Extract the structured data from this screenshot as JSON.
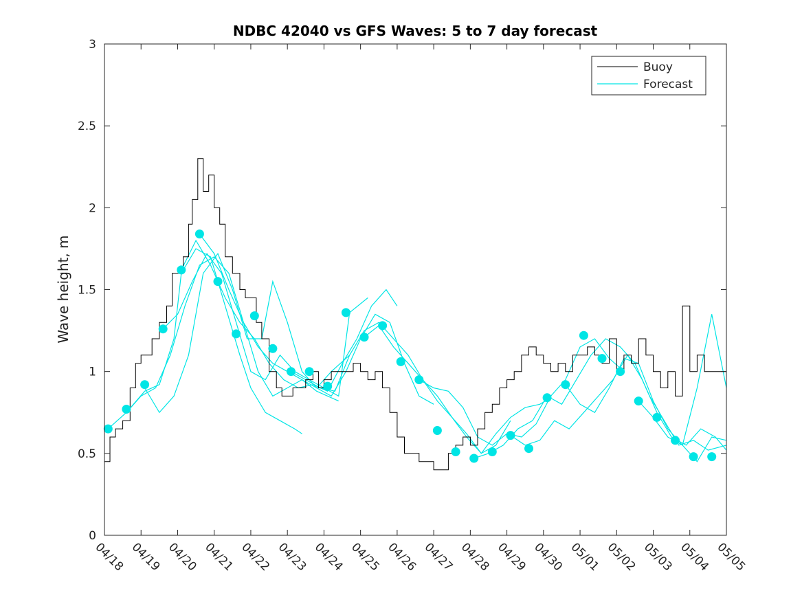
{
  "chart_data": {
    "type": "line",
    "title": "NDBC 42040 vs GFS Waves: 5 to 7 day forecast",
    "xlabel": "",
    "ylabel": "Wave height, m",
    "xlim": [
      0,
      17
    ],
    "ylim": [
      0,
      3
    ],
    "grid": false,
    "legend_position": "top-right",
    "legend": [
      "Buoy",
      "Forecast"
    ],
    "x_tick_labels": [
      "04/18",
      "04/19",
      "04/20",
      "04/21",
      "04/22",
      "04/23",
      "04/24",
      "04/25",
      "04/26",
      "04/27",
      "04/28",
      "04/29",
      "04/30",
      "05/01",
      "05/02",
      "05/03",
      "05/04",
      "05/05"
    ],
    "y_ticks": [
      0,
      0.5,
      1,
      1.5,
      2,
      2.5,
      3
    ],
    "y_tick_labels": [
      "0",
      "0.5",
      "1",
      "1.5",
      "2",
      "2.5",
      "3"
    ],
    "colors": {
      "buoy": "#000000",
      "forecast": "#00e5e5"
    },
    "buoy": {
      "name": "Buoy",
      "x": [
        0,
        0.15,
        0.3,
        0.5,
        0.7,
        0.85,
        1.0,
        1.2,
        1.3,
        1.5,
        1.7,
        1.85,
        2.0,
        2.15,
        2.3,
        2.4,
        2.55,
        2.7,
        2.85,
        3.0,
        3.15,
        3.3,
        3.5,
        3.7,
        3.85,
        4.0,
        4.15,
        4.3,
        4.5,
        4.7,
        4.85,
        5.0,
        5.15,
        5.3,
        5.5,
        5.7,
        5.85,
        6.0,
        6.2,
        6.4,
        6.6,
        6.8,
        7.0,
        7.2,
        7.4,
        7.6,
        7.8,
        8.0,
        8.2,
        8.4,
        8.6,
        8.8,
        9.0,
        9.2,
        9.4,
        9.6,
        9.8,
        10.0,
        10.2,
        10.4,
        10.6,
        10.8,
        11.0,
        11.2,
        11.4,
        11.6,
        11.8,
        12.0,
        12.2,
        12.4,
        12.6,
        12.8,
        13.0,
        13.2,
        13.4,
        13.6,
        13.8,
        14.0,
        14.2,
        14.4,
        14.6,
        14.8,
        15.0,
        15.2,
        15.4,
        15.6,
        15.8,
        16.0,
        16.2,
        16.4,
        16.6,
        16.8,
        17.0
      ],
      "values": [
        0.45,
        0.6,
        0.65,
        0.7,
        0.9,
        1.05,
        1.1,
        1.1,
        1.2,
        1.3,
        1.4,
        1.6,
        1.6,
        1.7,
        1.9,
        2.05,
        2.3,
        2.1,
        2.2,
        2.0,
        1.9,
        1.7,
        1.6,
        1.5,
        1.45,
        1.45,
        1.3,
        1.2,
        1.0,
        0.9,
        0.85,
        0.85,
        0.9,
        0.9,
        0.95,
        1.0,
        0.9,
        0.95,
        1.0,
        1.0,
        1.0,
        1.05,
        1.0,
        0.95,
        1.0,
        0.9,
        0.75,
        0.6,
        0.5,
        0.5,
        0.45,
        0.45,
        0.4,
        0.4,
        0.5,
        0.55,
        0.6,
        0.55,
        0.65,
        0.75,
        0.8,
        0.9,
        0.95,
        1.0,
        1.1,
        1.15,
        1.1,
        1.05,
        1.0,
        1.05,
        1.0,
        1.1,
        1.1,
        1.15,
        1.1,
        1.05,
        1.2,
        1.0,
        1.1,
        1.05,
        1.2,
        1.1,
        1.0,
        0.9,
        1.0,
        0.85,
        1.4,
        1.0,
        1.1,
        1.0,
        1.0,
        1.0,
        1.0
      ],
      "interval": "shown as a single series"
    },
    "forecast_points": {
      "name": "Forecast",
      "x": [
        0.1,
        0.6,
        1.1,
        1.6,
        2.1,
        2.6,
        3.1,
        3.6,
        4.1,
        4.6,
        5.1,
        5.6,
        6.1,
        6.6,
        7.1,
        7.6,
        8.1,
        8.6,
        9.1,
        9.6,
        10.1,
        10.6,
        11.1,
        11.6,
        12.1,
        12.6,
        13.1,
        13.6,
        14.1,
        14.6,
        15.1,
        15.6,
        16.1,
        16.6
      ],
      "values": [
        0.65,
        0.77,
        0.92,
        1.26,
        1.62,
        1.84,
        1.55,
        1.23,
        1.34,
        1.14,
        1.0,
        1.0,
        0.91,
        1.36,
        1.21,
        1.28,
        1.06,
        0.95,
        0.64,
        0.51,
        0.47,
        0.51,
        0.61,
        0.53,
        0.84,
        0.92,
        1.22,
        1.08,
        1.0,
        0.82,
        0.72,
        0.58,
        0.48,
        0.48
      ]
    },
    "forecast_series": [
      {
        "name": "",
        "x": [
          0.1,
          0.6,
          1.1,
          1.5,
          1.9,
          2.1,
          2.5,
          2.9,
          3.3,
          3.7,
          4.0,
          4.4,
          4.8,
          5.2,
          5.4
        ],
        "values": [
          0.65,
          0.75,
          0.88,
          0.92,
          1.2,
          1.6,
          1.75,
          1.7,
          1.4,
          1.1,
          0.9,
          0.75,
          0.7,
          0.65,
          0.62
        ]
      },
      {
        "name": "",
        "x": [
          0.6,
          1.0,
          1.4,
          1.8,
          2.2,
          2.6,
          3.0,
          3.4,
          3.8,
          4.2,
          4.6,
          5.0,
          5.4,
          5.8,
          6.4
        ],
        "values": [
          0.75,
          0.85,
          0.9,
          1.1,
          1.4,
          1.65,
          1.7,
          1.6,
          1.3,
          1.0,
          0.85,
          0.9,
          0.95,
          0.88,
          0.82
        ]
      },
      {
        "name": "",
        "x": [
          1.1,
          1.5,
          1.9,
          2.3,
          2.7,
          3.1,
          3.5,
          3.9,
          4.3,
          4.6,
          5.0,
          5.4,
          5.8,
          6.2,
          6.7
        ],
        "values": [
          0.9,
          0.75,
          0.85,
          1.1,
          1.6,
          1.72,
          1.5,
          1.2,
          1.2,
          1.55,
          1.3,
          1.0,
          0.9,
          1.0,
          1.1
        ]
      },
      {
        "name": "",
        "x": [
          1.6,
          2.0,
          2.4,
          2.8,
          3.2,
          3.6,
          4.0,
          4.4,
          4.8,
          5.2,
          5.6,
          6.0,
          6.4,
          6.7,
          7.2
        ],
        "values": [
          1.26,
          1.35,
          1.55,
          1.72,
          1.6,
          1.3,
          1.0,
          0.95,
          1.1,
          1.0,
          0.95,
          0.9,
          0.85,
          1.36,
          1.45
        ]
      },
      {
        "name": "",
        "x": [
          2.1,
          2.5,
          2.9,
          3.3,
          3.7,
          4.1,
          4.5,
          4.9,
          5.3,
          5.7,
          6.1,
          6.5,
          6.9,
          7.3,
          7.7,
          8.0
        ],
        "values": [
          1.62,
          1.8,
          1.65,
          1.45,
          1.3,
          1.2,
          1.05,
          0.95,
          0.9,
          0.92,
          0.88,
          1.05,
          1.2,
          1.4,
          1.5,
          1.4
        ]
      },
      {
        "name": "",
        "x": [
          2.6,
          3.0,
          3.4,
          3.8,
          4.2,
          4.6,
          5.0,
          5.4,
          5.8,
          6.2,
          6.6,
          7.0,
          7.4,
          7.8,
          8.2,
          8.6,
          9.0
        ],
        "values": [
          1.84,
          1.72,
          1.5,
          1.3,
          1.15,
          1.05,
          1.0,
          0.95,
          0.9,
          0.85,
          1.0,
          1.2,
          1.35,
          1.3,
          1.05,
          0.85,
          0.8
        ]
      },
      {
        "name": "",
        "x": [
          5.1,
          5.5,
          5.9,
          6.3,
          6.7,
          7.1,
          7.5,
          7.9,
          8.3,
          8.7,
          9.1,
          9.5,
          9.9,
          10.3,
          10.7,
          11.1
        ],
        "values": [
          1.0,
          0.95,
          0.9,
          0.88,
          1.1,
          1.25,
          1.3,
          1.2,
          1.1,
          0.95,
          0.82,
          0.72,
          0.6,
          0.5,
          0.55,
          0.7
        ]
      },
      {
        "name": "",
        "x": [
          7.1,
          7.5,
          7.9,
          8.3,
          8.7,
          9.1,
          9.5,
          9.9,
          10.3,
          10.7,
          11.1,
          11.5,
          11.9,
          12.2
        ],
        "values": [
          1.21,
          1.28,
          1.15,
          1.05,
          0.95,
          0.85,
          0.72,
          0.62,
          0.5,
          0.62,
          0.72,
          0.78,
          0.8,
          0.84
        ]
      },
      {
        "name": "",
        "x": [
          8.6,
          9.0,
          9.4,
          9.8,
          10.2,
          10.6,
          11.0,
          11.4,
          11.8,
          12.2,
          12.6,
          13.0,
          13.4,
          13.8,
          14.2
        ],
        "values": [
          0.95,
          0.9,
          0.88,
          0.78,
          0.6,
          0.55,
          0.62,
          0.6,
          0.68,
          0.85,
          0.95,
          1.15,
          1.2,
          1.08,
          1.0
        ]
      },
      {
        "name": "",
        "x": [
          10.1,
          10.5,
          10.9,
          11.3,
          11.7,
          12.1,
          12.5,
          12.9,
          13.3,
          13.7,
          14.1,
          14.5,
          14.9,
          15.3,
          15.7,
          16.1,
          16.5,
          17.0
        ],
        "values": [
          0.47,
          0.5,
          0.55,
          0.65,
          0.7,
          0.85,
          0.8,
          0.95,
          1.1,
          1.2,
          1.15,
          1.05,
          0.85,
          0.7,
          0.55,
          0.58,
          0.52,
          0.55
        ]
      },
      {
        "name": "",
        "x": [
          11.1,
          11.5,
          11.9,
          12.3,
          12.7,
          13.1,
          13.5,
          13.9,
          14.3,
          14.7,
          15.1,
          15.5,
          15.9,
          16.3,
          16.7,
          17.0
        ],
        "values": [
          0.61,
          0.55,
          0.58,
          0.7,
          0.65,
          0.75,
          0.85,
          0.95,
          1.1,
          0.95,
          0.75,
          0.6,
          0.55,
          0.65,
          0.6,
          0.52
        ]
      },
      {
        "name": "",
        "x": [
          12.6,
          13.0,
          13.4,
          13.8,
          14.2,
          14.6,
          15.0,
          15.4,
          15.8,
          16.2,
          16.6,
          17.0
        ],
        "values": [
          0.92,
          0.8,
          0.75,
          0.9,
          1.08,
          1.05,
          0.82,
          0.65,
          0.55,
          0.45,
          0.6,
          0.58
        ]
      },
      {
        "name": "",
        "x": [
          14.6,
          15.0,
          15.4,
          15.8,
          16.2,
          16.6,
          17.0
        ],
        "values": [
          0.82,
          0.72,
          0.6,
          0.55,
          0.9,
          1.35,
          0.9
        ]
      }
    ]
  }
}
